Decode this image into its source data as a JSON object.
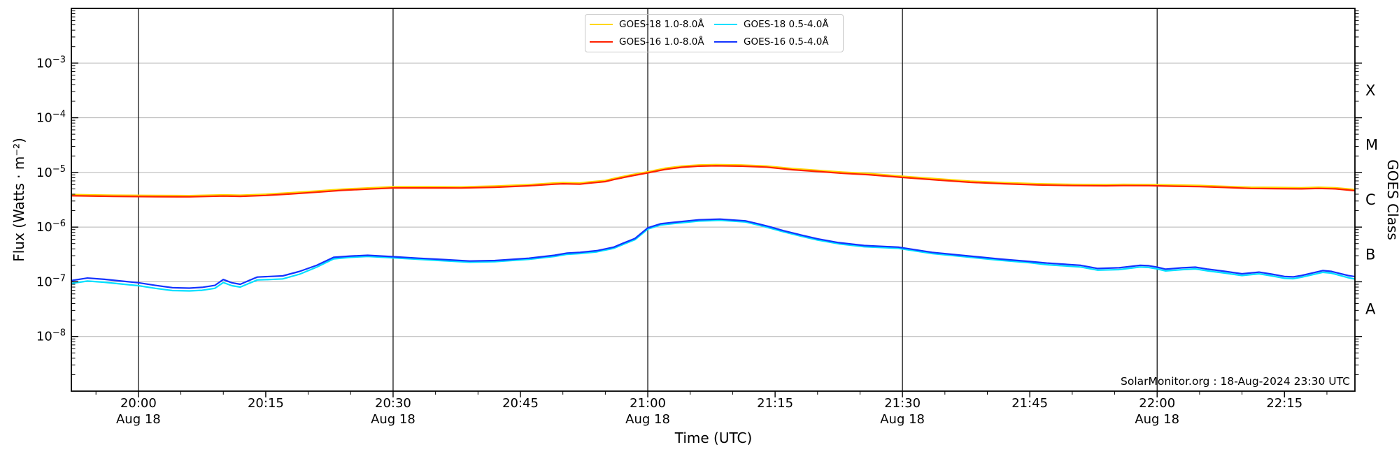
{
  "annotation": "SolarMonitor.org : 18-Aug-2024 23:30 UTC",
  "colors": {
    "grid_h": "#b3b3b3",
    "grid_v": "#000000",
    "spine": "#000000",
    "background": "#ffffff",
    "text": "#000000"
  },
  "chart_data": {
    "type": "line",
    "xlabel": "Time (UTC)",
    "ylabel": "Flux (Watts · m⁻²)",
    "ylabel_right": "GOES Class",
    "x_date_label": "Aug 18",
    "x_range_minutes": [
      1192.1,
      1343.3
    ],
    "ylim": [
      1e-09,
      0.01
    ],
    "grid": true,
    "legend_position": "top-center",
    "x_major_ticks": [
      {
        "min": 1200,
        "label": "20:00",
        "date": "Aug 18"
      },
      {
        "min": 1215,
        "label": "20:15",
        "date": ""
      },
      {
        "min": 1230,
        "label": "20:30",
        "date": "Aug 18"
      },
      {
        "min": 1245,
        "label": "20:45",
        "date": ""
      },
      {
        "min": 1260,
        "label": "21:00",
        "date": "Aug 18"
      },
      {
        "min": 1275,
        "label": "21:15",
        "date": ""
      },
      {
        "min": 1290,
        "label": "21:30",
        "date": "Aug 18"
      },
      {
        "min": 1305,
        "label": "21:45",
        "date": ""
      },
      {
        "min": 1320,
        "label": "22:00",
        "date": "Aug 18"
      },
      {
        "min": 1335,
        "label": "22:15",
        "date": ""
      }
    ],
    "x_minor_step_minutes": 5,
    "vertical_gridlines_minutes": [
      1200,
      1230,
      1260,
      1290,
      1320
    ],
    "y_major_tick_exponents": [
      -3,
      -4,
      -5,
      -6,
      -7,
      -8
    ],
    "goes_class_labels": [
      {
        "label": "X",
        "log_center": -3.5
      },
      {
        "label": "M",
        "log_center": -4.5
      },
      {
        "label": "C",
        "log_center": -5.5
      },
      {
        "label": "B",
        "log_center": -6.5
      },
      {
        "label": "A",
        "log_center": -7.5
      }
    ],
    "series": [
      {
        "name": "GOES-18 1.0-8.0Å",
        "id": "goes18-long",
        "color": "#ffd700",
        "width": 2.2,
        "points": [
          [
            1192,
            3.94e-06
          ],
          [
            1197,
            3.83e-06
          ],
          [
            1202,
            3.78e-06
          ],
          [
            1206,
            3.76e-06
          ],
          [
            1210,
            3.89e-06
          ],
          [
            1212,
            3.83e-06
          ],
          [
            1215,
            3.99e-06
          ],
          [
            1218,
            4.25e-06
          ],
          [
            1221,
            4.57e-06
          ],
          [
            1224,
            4.94e-06
          ],
          [
            1227,
            5.2e-06
          ],
          [
            1230,
            5.46e-06
          ],
          [
            1234,
            5.46e-06
          ],
          [
            1238,
            5.44e-06
          ],
          [
            1242,
            5.62e-06
          ],
          [
            1246,
            5.99e-06
          ],
          [
            1249,
            6.41e-06
          ],
          [
            1250,
            6.51e-06
          ],
          [
            1252,
            6.41e-06
          ],
          [
            1253,
            6.67e-06
          ],
          [
            1255,
            7.14e-06
          ],
          [
            1256,
            7.77e-06
          ],
          [
            1258,
            9.03e-06
          ],
          [
            1260,
            1.03e-05
          ],
          [
            1262,
            1.19e-05
          ],
          [
            1264,
            1.3e-05
          ],
          [
            1266,
            1.37e-05
          ],
          [
            1268,
            1.39e-05
          ],
          [
            1271,
            1.37e-05
          ],
          [
            1274,
            1.31e-05
          ],
          [
            1277,
            1.18e-05
          ],
          [
            1280,
            1.09e-05
          ],
          [
            1283,
            1.01e-05
          ],
          [
            1286,
            9.56e-06
          ],
          [
            1290,
            8.51e-06
          ],
          [
            1294,
            7.67e-06
          ],
          [
            1298,
            6.93e-06
          ],
          [
            1302,
            6.51e-06
          ],
          [
            1306,
            6.2e-06
          ],
          [
            1310,
            6.04e-06
          ],
          [
            1314,
            5.99e-06
          ],
          [
            1316,
            6.04e-06
          ],
          [
            1319,
            6.01e-06
          ],
          [
            1322,
            5.88e-06
          ],
          [
            1325,
            5.78e-06
          ],
          [
            1328,
            5.57e-06
          ],
          [
            1331,
            5.36e-06
          ],
          [
            1334,
            5.3e-06
          ],
          [
            1337,
            5.25e-06
          ],
          [
            1339,
            5.36e-06
          ],
          [
            1341,
            5.25e-06
          ],
          [
            1343.2,
            4.88e-06
          ]
        ]
      },
      {
        "name": "GOES-16 1.0-8.0Å",
        "id": "goes16-long",
        "color": "#ff2000",
        "width": 2.2,
        "points": [
          [
            1192,
            3.75e-06
          ],
          [
            1197,
            3.65e-06
          ],
          [
            1202,
            3.6e-06
          ],
          [
            1206,
            3.58e-06
          ],
          [
            1210,
            3.7e-06
          ],
          [
            1212,
            3.65e-06
          ],
          [
            1215,
            3.8e-06
          ],
          [
            1218,
            4.05e-06
          ],
          [
            1221,
            4.35e-06
          ],
          [
            1224,
            4.7e-06
          ],
          [
            1227,
            4.95e-06
          ],
          [
            1230,
            5.2e-06
          ],
          [
            1234,
            5.2e-06
          ],
          [
            1238,
            5.18e-06
          ],
          [
            1242,
            5.35e-06
          ],
          [
            1246,
            5.7e-06
          ],
          [
            1249,
            6.1e-06
          ],
          [
            1250,
            6.2e-06
          ],
          [
            1252,
            6.1e-06
          ],
          [
            1253,
            6.35e-06
          ],
          [
            1255,
            6.8e-06
          ],
          [
            1256,
            7.4e-06
          ],
          [
            1258,
            8.6e-06
          ],
          [
            1260,
            9.8e-06
          ],
          [
            1262,
            1.13e-05
          ],
          [
            1264,
            1.24e-05
          ],
          [
            1266,
            1.3e-05
          ],
          [
            1268,
            1.32e-05
          ],
          [
            1271,
            1.3e-05
          ],
          [
            1274,
            1.25e-05
          ],
          [
            1277,
            1.12e-05
          ],
          [
            1280,
            1.04e-05
          ],
          [
            1283,
            9.6e-06
          ],
          [
            1286,
            9.1e-06
          ],
          [
            1290,
            8.1e-06
          ],
          [
            1294,
            7.3e-06
          ],
          [
            1298,
            6.6e-06
          ],
          [
            1302,
            6.2e-06
          ],
          [
            1306,
            5.9e-06
          ],
          [
            1310,
            5.75e-06
          ],
          [
            1314,
            5.7e-06
          ],
          [
            1316,
            5.75e-06
          ],
          [
            1319,
            5.72e-06
          ],
          [
            1322,
            5.6e-06
          ],
          [
            1325,
            5.5e-06
          ],
          [
            1328,
            5.3e-06
          ],
          [
            1331,
            5.1e-06
          ],
          [
            1334,
            5.05e-06
          ],
          [
            1337,
            5e-06
          ],
          [
            1339,
            5.1e-06
          ],
          [
            1341,
            5e-06
          ],
          [
            1343.2,
            4.65e-06
          ]
        ]
      },
      {
        "name": "GOES-18 0.5-4.0Å",
        "id": "goes18-short",
        "color": "#00e0ff",
        "width": 2.2,
        "points": [
          [
            1192,
            9.3e-08
          ],
          [
            1194,
            1.03e-07
          ],
          [
            1196,
            9.8e-08
          ],
          [
            1198,
            9.1e-08
          ],
          [
            1200,
            8.5e-08
          ],
          [
            1202,
            7.6e-08
          ],
          [
            1204,
            6.9e-08
          ],
          [
            1206,
            6.8e-08
          ],
          [
            1207.5,
            7e-08
          ],
          [
            1209,
            7.6e-08
          ],
          [
            1210,
            9.7e-08
          ],
          [
            1211,
            8.5e-08
          ],
          [
            1212,
            8e-08
          ],
          [
            1213,
            9.3e-08
          ],
          [
            1214,
            1.08e-07
          ],
          [
            1215.5,
            1.1e-07
          ],
          [
            1217,
            1.13e-07
          ],
          [
            1219,
            1.38e-07
          ],
          [
            1221,
            1.85e-07
          ],
          [
            1223,
            2.63e-07
          ],
          [
            1225,
            2.8e-07
          ],
          [
            1227,
            2.9e-07
          ],
          [
            1230,
            2.74e-07
          ],
          [
            1233,
            2.57e-07
          ],
          [
            1236,
            2.42e-07
          ],
          [
            1239,
            2.28e-07
          ],
          [
            1242,
            2.33e-07
          ],
          [
            1246,
            2.57e-07
          ],
          [
            1249,
            2.9e-07
          ],
          [
            1250.5,
            3.18e-07
          ],
          [
            1252,
            3.28e-07
          ],
          [
            1254,
            3.52e-07
          ],
          [
            1256,
            4.09e-07
          ],
          [
            1257,
            4.75e-07
          ],
          [
            1258.5,
            5.9e-07
          ],
          [
            1260,
            9.2e-07
          ],
          [
            1261.5,
            1.09e-06
          ],
          [
            1263,
            1.16e-06
          ],
          [
            1266,
            1.29e-06
          ],
          [
            1268.5,
            1.33e-06
          ],
          [
            1271.5,
            1.24e-06
          ],
          [
            1273,
            1.09e-06
          ],
          [
            1274.5,
            9.5e-07
          ],
          [
            1276,
            8.2e-07
          ],
          [
            1278,
            6.85e-07
          ],
          [
            1280,
            5.8e-07
          ],
          [
            1282.5,
            4.95e-07
          ],
          [
            1285.5,
            4.37e-07
          ],
          [
            1289.5,
            4.09e-07
          ],
          [
            1293.5,
            3.28e-07
          ],
          [
            1297.5,
            2.85e-07
          ],
          [
            1301.5,
            2.47e-07
          ],
          [
            1305,
            2.23e-07
          ],
          [
            1307,
            2.05e-07
          ],
          [
            1311,
            1.86e-07
          ],
          [
            1313,
            1.63e-07
          ],
          [
            1315.5,
            1.67e-07
          ],
          [
            1318,
            1.86e-07
          ],
          [
            1319,
            1.83e-07
          ],
          [
            1320,
            1.72e-07
          ],
          [
            1321,
            1.58e-07
          ],
          [
            1323,
            1.67e-07
          ],
          [
            1324.5,
            1.72e-07
          ],
          [
            1326,
            1.58e-07
          ],
          [
            1328,
            1.44e-07
          ],
          [
            1330,
            1.3e-07
          ],
          [
            1332,
            1.4e-07
          ],
          [
            1333.5,
            1.28e-07
          ],
          [
            1335,
            1.16e-07
          ],
          [
            1336,
            1.14e-07
          ],
          [
            1337,
            1.21e-07
          ],
          [
            1339.5,
            1.49e-07
          ],
          [
            1340.5,
            1.44e-07
          ],
          [
            1342.5,
            1.19e-07
          ],
          [
            1343.2,
            1.13e-07
          ]
        ]
      },
      {
        "name": "GOES-16 0.5-4.0Å",
        "id": "goes16-short",
        "color": "#1333ff",
        "width": 2.2,
        "points": [
          [
            1192,
            1.05e-07
          ],
          [
            1194,
            1.17e-07
          ],
          [
            1196,
            1.11e-07
          ],
          [
            1198,
            1.03e-07
          ],
          [
            1200,
            9.6e-08
          ],
          [
            1202,
            8.6e-08
          ],
          [
            1204,
            7.8e-08
          ],
          [
            1206,
            7.65e-08
          ],
          [
            1207.5,
            7.9e-08
          ],
          [
            1209,
            8.6e-08
          ],
          [
            1210,
            1.1e-07
          ],
          [
            1211,
            9.6e-08
          ],
          [
            1212,
            9e-08
          ],
          [
            1213,
            1.05e-07
          ],
          [
            1214,
            1.22e-07
          ],
          [
            1215.5,
            1.25e-07
          ],
          [
            1217,
            1.28e-07
          ],
          [
            1219,
            1.55e-07
          ],
          [
            1221,
            2e-07
          ],
          [
            1223,
            2.8e-07
          ],
          [
            1225,
            2.95e-07
          ],
          [
            1227,
            3.05e-07
          ],
          [
            1230,
            2.88e-07
          ],
          [
            1233,
            2.7e-07
          ],
          [
            1236,
            2.55e-07
          ],
          [
            1239,
            2.4e-07
          ],
          [
            1242,
            2.45e-07
          ],
          [
            1246,
            2.7e-07
          ],
          [
            1249,
            3.05e-07
          ],
          [
            1250.5,
            3.35e-07
          ],
          [
            1252,
            3.45e-07
          ],
          [
            1254,
            3.7e-07
          ],
          [
            1256,
            4.3e-07
          ],
          [
            1257,
            5e-07
          ],
          [
            1258.5,
            6.2e-07
          ],
          [
            1260,
            9.7e-07
          ],
          [
            1261.5,
            1.15e-06
          ],
          [
            1263,
            1.22e-06
          ],
          [
            1266,
            1.36e-06
          ],
          [
            1268.5,
            1.4e-06
          ],
          [
            1271.5,
            1.3e-06
          ],
          [
            1273,
            1.15e-06
          ],
          [
            1274.5,
            1e-06
          ],
          [
            1276,
            8.6e-07
          ],
          [
            1278,
            7.2e-07
          ],
          [
            1280,
            6.1e-07
          ],
          [
            1282.5,
            5.2e-07
          ],
          [
            1285.5,
            4.6e-07
          ],
          [
            1289.5,
            4.3e-07
          ],
          [
            1293.5,
            3.45e-07
          ],
          [
            1297.5,
            3e-07
          ],
          [
            1301.5,
            2.6e-07
          ],
          [
            1305,
            2.35e-07
          ],
          [
            1307,
            2.2e-07
          ],
          [
            1311,
            2e-07
          ],
          [
            1313,
            1.75e-07
          ],
          [
            1315.5,
            1.8e-07
          ],
          [
            1318,
            2e-07
          ],
          [
            1319,
            1.97e-07
          ],
          [
            1320,
            1.85e-07
          ],
          [
            1321,
            1.7e-07
          ],
          [
            1323,
            1.8e-07
          ],
          [
            1324.5,
            1.85e-07
          ],
          [
            1326,
            1.7e-07
          ],
          [
            1328,
            1.55e-07
          ],
          [
            1330,
            1.4e-07
          ],
          [
            1332,
            1.5e-07
          ],
          [
            1333.5,
            1.38e-07
          ],
          [
            1335,
            1.25e-07
          ],
          [
            1336,
            1.23e-07
          ],
          [
            1337,
            1.3e-07
          ],
          [
            1339.5,
            1.6e-07
          ],
          [
            1340.5,
            1.55e-07
          ],
          [
            1342.5,
            1.3e-07
          ],
          [
            1343.2,
            1.25e-07
          ]
        ]
      }
    ]
  },
  "legend": {
    "entries": [
      {
        "label": "GOES-18 1.0-8.0Å"
      },
      {
        "label": "GOES-16 1.0-8.0Å"
      },
      {
        "label": "GOES-18 0.5-4.0Å"
      },
      {
        "label": "GOES-16 0.5-4.0Å"
      }
    ]
  }
}
